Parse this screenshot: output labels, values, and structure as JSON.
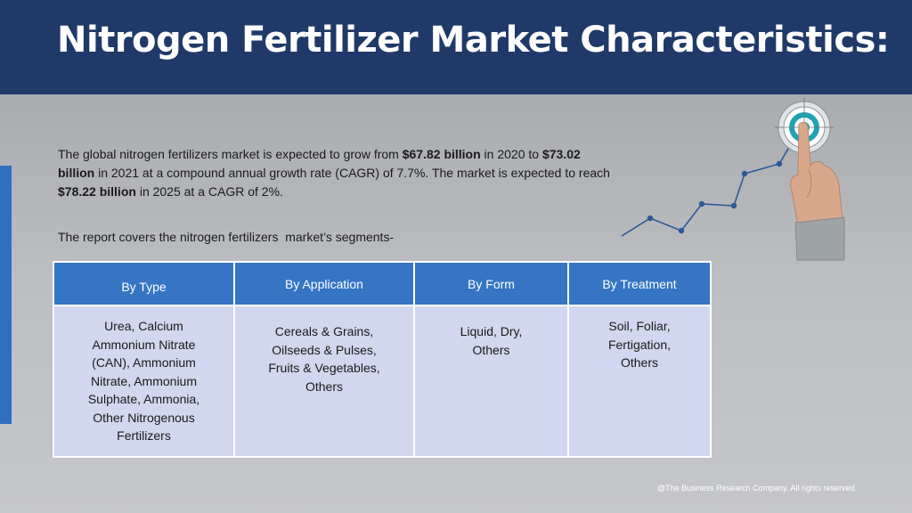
{
  "header": {
    "title": "Nitrogen Fertilizer Market Characteristics:"
  },
  "intro": {
    "part1": "The global nitrogen fertilizers market is expected to grow from ",
    "value_2020": "$67.82 billion",
    "part2": " in 2020 to ",
    "value_2021": "$73.02 billion",
    "part3": " in 2021 at a compound annual growth rate (CAGR) of 7.7%. The market is expected to reach ",
    "value_2025": "$78.22 billion",
    "part4": " in 2025 at a CAGR of 2%."
  },
  "segments_intro": "The report covers the nitrogen fertilizers  market’s segments-",
  "segments_table": {
    "headers": [
      "By Type",
      "By Application",
      "By Form",
      "By Treatment"
    ],
    "cells": [
      "Urea, Calcium Ammonium Nitrate (CAN), Ammonium Nitrate, Ammonium Sulphate, Ammonia, Other Nitrogenous Fertilizers",
      "Cereals & Grains, Oilseeds & Pulses, Fruits & Vegetables, Others",
      "Liquid, Dry, Others",
      "Soil, Foliar, Fertigation, Others"
    ]
  },
  "graphic": {
    "icons": [
      "growth-line-icon",
      "target-icon",
      "pointing-hand-icon"
    ],
    "colors": {
      "line": "#2d5a96",
      "target": "#1ea3b5"
    }
  },
  "footer": {
    "copyright": "@The Business Research Company. All rights reserved."
  },
  "colors": {
    "header_bg": "#1f3a68",
    "accent_bar": "#2f6fbf",
    "table_header": "#3575c4",
    "table_cell": "#d0d7ef"
  }
}
